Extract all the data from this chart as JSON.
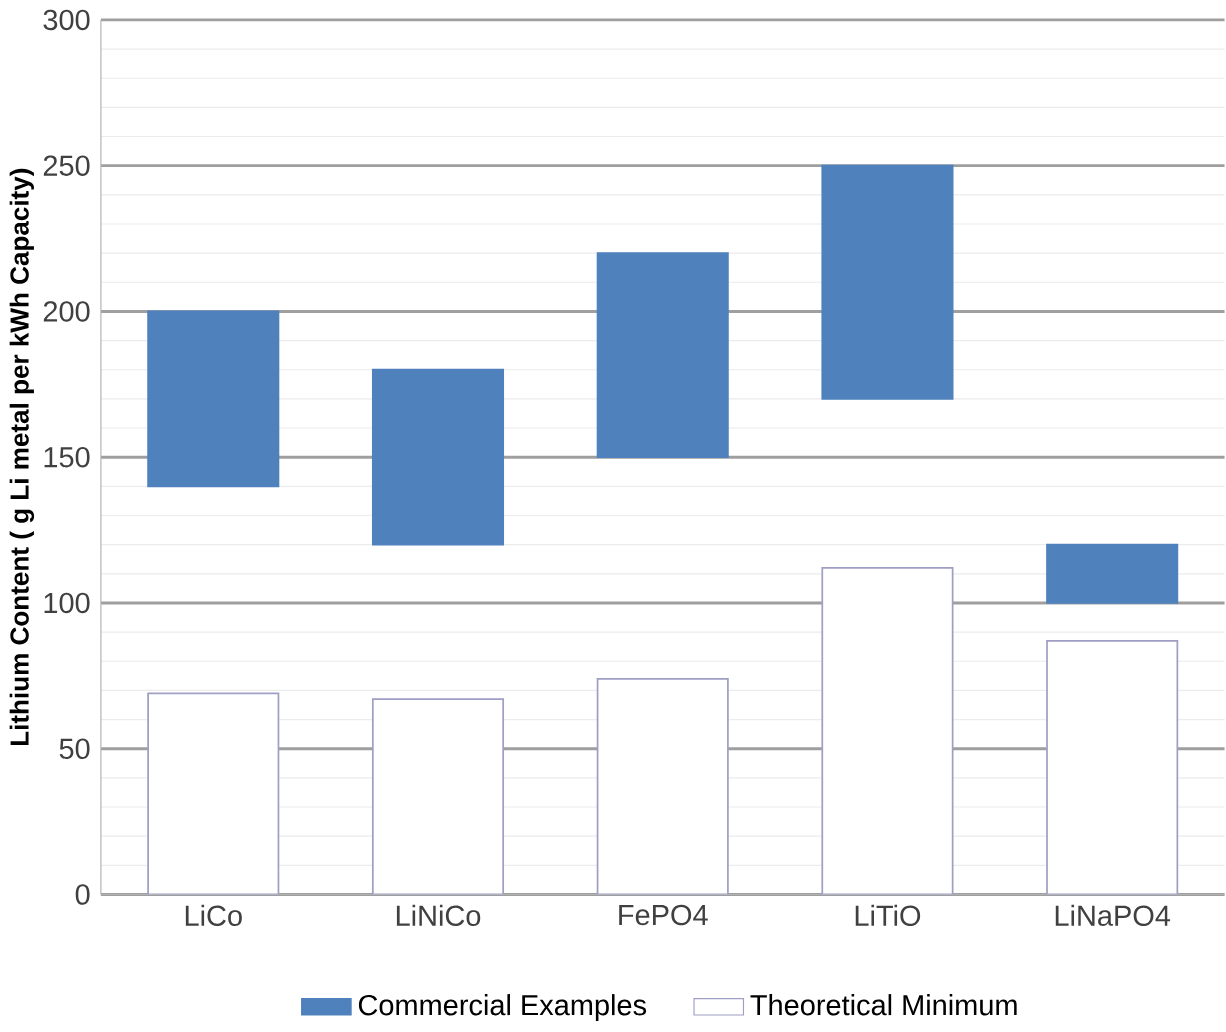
{
  "chart_data": {
    "type": "bar",
    "ylabel": "Lithium Content ( g Li metal per kWh Capacity)",
    "categories": [
      "LiCo",
      "LiNiCo",
      "FePO4",
      "LiTiO",
      "LiNaPO4"
    ],
    "series": [
      {
        "name": "Commercial Examples",
        "color": "#4f81bd",
        "base": [
          140,
          120,
          150,
          170,
          100
        ],
        "values": [
          60,
          60,
          70,
          80,
          20
        ]
      },
      {
        "name": "Theoretical Minimum",
        "color": "#ffffff",
        "values": [
          69,
          67,
          74,
          112,
          87
        ]
      }
    ],
    "ylim": [
      0,
      300
    ],
    "yticks": [
      0,
      50,
      100,
      150,
      200,
      250,
      300
    ],
    "grid": "y",
    "legend": "bottom"
  }
}
